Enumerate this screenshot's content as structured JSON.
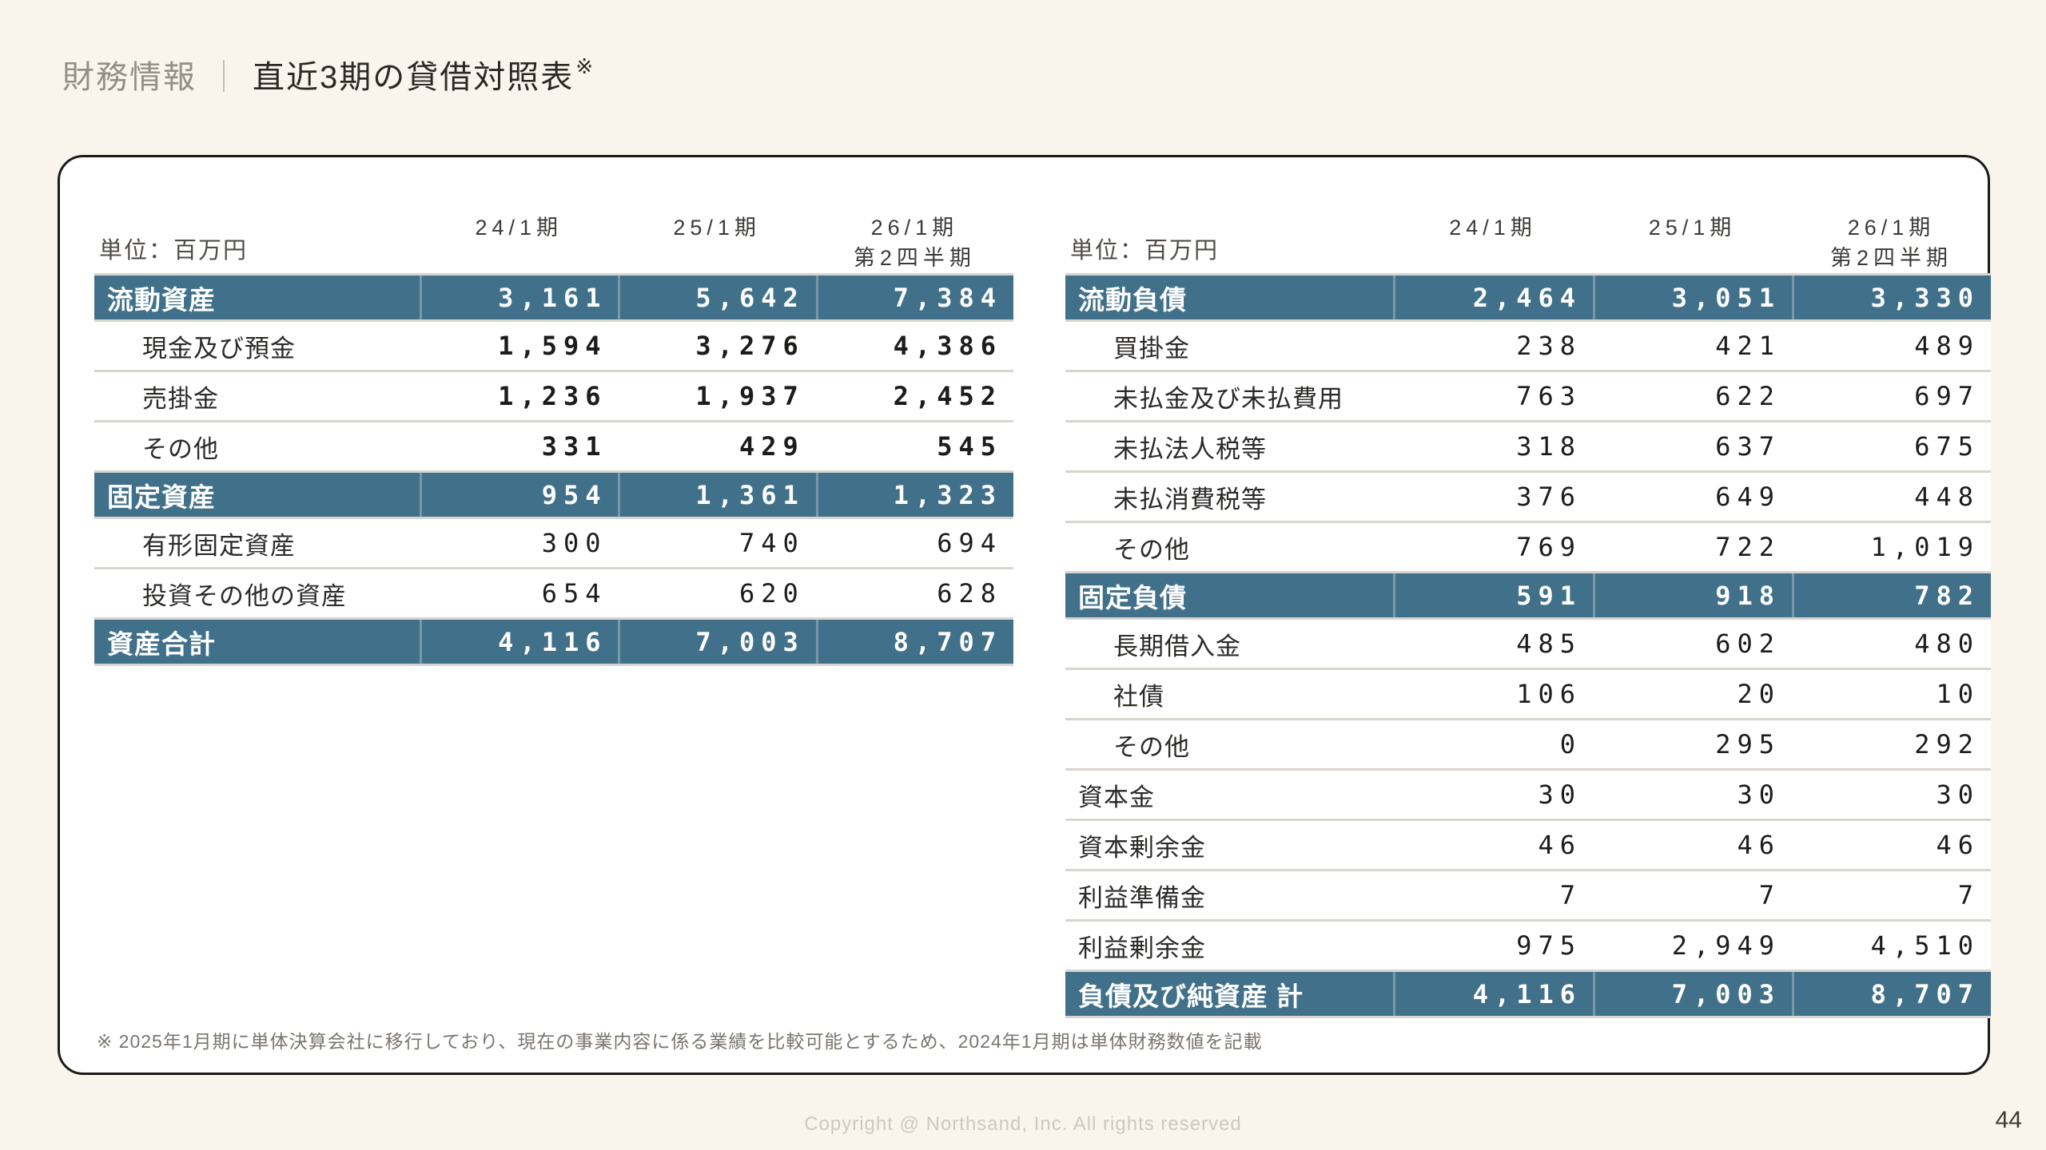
{
  "header": {
    "section": "財務情報",
    "separator": "｜",
    "title": "直近3期の貸借対照表",
    "note_mark": "※"
  },
  "footnote": "※ 2025年1月期に単体決算会社に移行しており、現在の事業内容に係る業績を比較可能とするため、2024年1月期は単体財務数値を記載",
  "copyright": "Copyright @ Northsand, Inc. All rights reserved",
  "page_number": "44",
  "colors": {
    "page_bg": "#faf5ec",
    "card_bg": "#ffffff",
    "card_border": "#1a1a18",
    "teal": "#41718a",
    "separator": "#d9d5ce"
  },
  "tables": [
    {
      "id": "assets",
      "unit_label": "単位：百万円",
      "periods": [
        [
          "24/1期"
        ],
        [
          "25/1期"
        ],
        [
          "26/1期",
          "第2四半期"
        ]
      ],
      "rows": [
        {
          "label": "流動資産",
          "values": [
            "3,161",
            "5,642",
            "7,384"
          ],
          "style": "teal"
        },
        {
          "label": "現金及び預金",
          "values": [
            "1,594",
            "3,276",
            "4,386"
          ],
          "style": "item",
          "bold": true
        },
        {
          "label": "売掛金",
          "values": [
            "1,236",
            "1,937",
            "2,452"
          ],
          "style": "item",
          "bold": true
        },
        {
          "label": "その他",
          "values": [
            "331",
            "429",
            "545"
          ],
          "style": "item",
          "bold": true
        },
        {
          "label": "固定資産",
          "values": [
            "954",
            "1,361",
            "1,323"
          ],
          "style": "teal"
        },
        {
          "label": "有形固定資産",
          "values": [
            "300",
            "740",
            "694"
          ],
          "style": "item"
        },
        {
          "label": "投資その他の資産",
          "values": [
            "654",
            "620",
            "628"
          ],
          "style": "item"
        },
        {
          "label": "資産合計",
          "values": [
            "4,116",
            "7,003",
            "8,707"
          ],
          "style": "teal"
        }
      ]
    },
    {
      "id": "liabilities",
      "unit_label": "単位：百万円",
      "periods": [
        [
          "24/1期"
        ],
        [
          "25/1期"
        ],
        [
          "26/1期",
          "第2四半期"
        ]
      ],
      "rows": [
        {
          "label": "流動負債",
          "values": [
            "2,464",
            "3,051",
            "3,330"
          ],
          "style": "teal"
        },
        {
          "label": "買掛金",
          "values": [
            "238",
            "421",
            "489"
          ],
          "style": "item"
        },
        {
          "label": "未払金及び未払費用",
          "values": [
            "763",
            "622",
            "697"
          ],
          "style": "item"
        },
        {
          "label": "未払法人税等",
          "values": [
            "318",
            "637",
            "675"
          ],
          "style": "item"
        },
        {
          "label": "未払消費税等",
          "values": [
            "376",
            "649",
            "448"
          ],
          "style": "item"
        },
        {
          "label": "その他",
          "values": [
            "769",
            "722",
            "1,019"
          ],
          "style": "item"
        },
        {
          "label": "固定負債",
          "values": [
            "591",
            "918",
            "782"
          ],
          "style": "teal"
        },
        {
          "label": "長期借入金",
          "values": [
            "485",
            "602",
            "480"
          ],
          "style": "item"
        },
        {
          "label": "社債",
          "values": [
            "106",
            "20",
            "10"
          ],
          "style": "item"
        },
        {
          "label": "その他",
          "values": [
            "0",
            "295",
            "292"
          ],
          "style": "item"
        },
        {
          "label": "資本金",
          "values": [
            "30",
            "30",
            "30"
          ],
          "style": "flat"
        },
        {
          "label": "資本剰余金",
          "values": [
            "46",
            "46",
            "46"
          ],
          "style": "flat"
        },
        {
          "label": "利益準備金",
          "values": [
            "7",
            "7",
            "7"
          ],
          "style": "flat"
        },
        {
          "label": "利益剰余金",
          "values": [
            "975",
            "2,949",
            "4,510"
          ],
          "style": "flat"
        },
        {
          "label": "負債及び純資産 計",
          "values": [
            "4,116",
            "7,003",
            "8,707"
          ],
          "style": "teal"
        }
      ]
    }
  ]
}
